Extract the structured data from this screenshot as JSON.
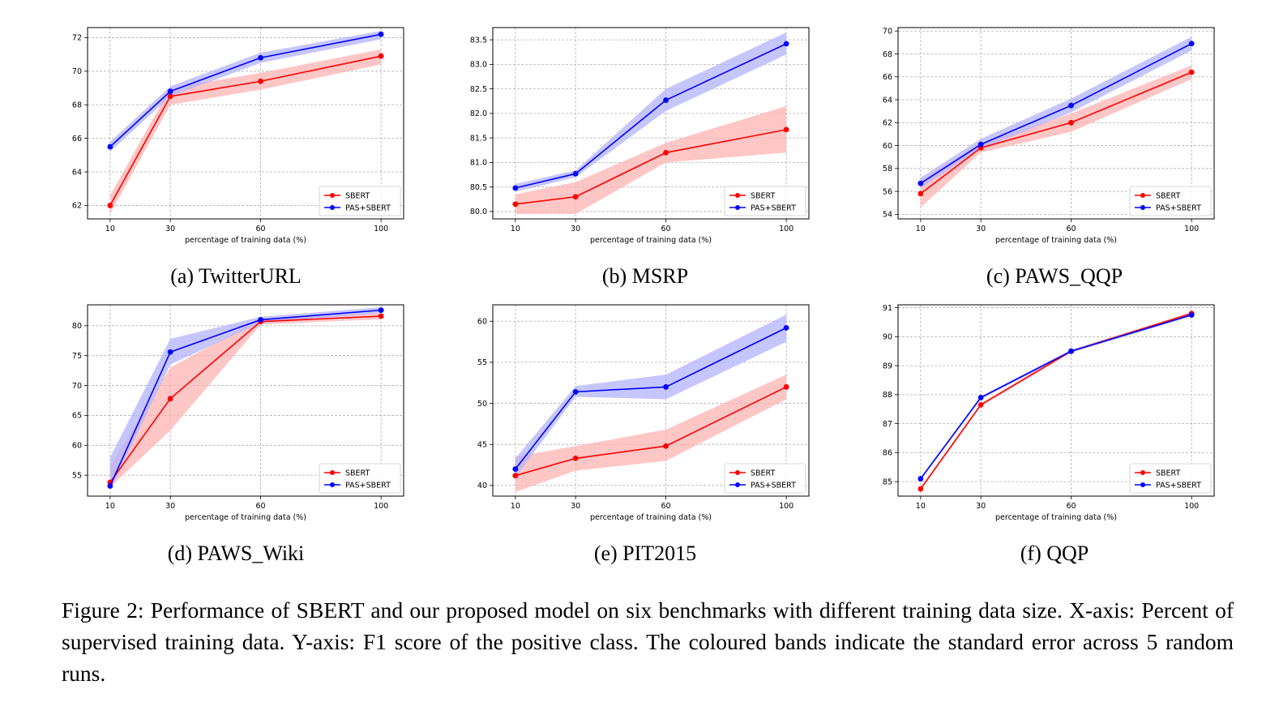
{
  "figure_caption": "Figure 2: Performance of SBERT and our proposed model on six benchmarks with different training data size. X-axis: Percent of supervised training data. Y-axis: F1 score of the positive class. The coloured bands indicate the standard error across 5 random runs.",
  "colors": {
    "sbert": "#ff0000",
    "pas": "#0000ff",
    "sbert_band": "#ffb3b3",
    "pas_band": "#b3b3ff"
  },
  "chart_data": [
    {
      "type": "line",
      "caption": "(a) TwitterURL",
      "xlabel": "percentage of training data (%)",
      "x": [
        10,
        30,
        60,
        100
      ],
      "x_ticks": [
        "10",
        "30",
        "60",
        "100"
      ],
      "y_ticks": [
        62,
        64,
        66,
        68,
        70,
        72
      ],
      "y_tick_labels": [
        "62",
        "64",
        "66",
        "68",
        "70",
        "72"
      ],
      "ylim": [
        61.2,
        72.6
      ],
      "grid": true,
      "legend": "lower-right",
      "series": [
        {
          "name": "SBERT",
          "values": [
            62.0,
            68.5,
            69.4,
            70.9
          ],
          "band": [
            [
              61.5,
              62.6
            ],
            [
              68.0,
              69.0
            ],
            [
              68.9,
              69.9
            ],
            [
              70.4,
              71.3
            ]
          ]
        },
        {
          "name": "PAS+SBERT",
          "values": [
            65.5,
            68.8,
            70.8,
            72.2
          ],
          "band": [
            [
              65.2,
              65.8
            ],
            [
              68.5,
              69.1
            ],
            [
              70.5,
              71.1
            ],
            [
              71.9,
              72.4
            ]
          ]
        }
      ]
    },
    {
      "type": "line",
      "caption": "(b) MSRP",
      "xlabel": "percentage of training data (%)",
      "x": [
        10,
        30,
        60,
        100
      ],
      "x_ticks": [
        "10",
        "30",
        "60",
        "100"
      ],
      "y_ticks": [
        80.0,
        80.5,
        81.0,
        81.5,
        82.0,
        82.5,
        83.0,
        83.5
      ],
      "y_tick_labels": [
        "80.0",
        "80.5",
        "81.0",
        "81.5",
        "82.0",
        "82.5",
        "83.0",
        "83.5"
      ],
      "ylim": [
        79.85,
        83.75
      ],
      "grid": true,
      "legend": "lower-right",
      "series": [
        {
          "name": "SBERT",
          "values": [
            80.15,
            80.3,
            81.2,
            81.67
          ],
          "band": [
            [
              79.95,
              80.35
            ],
            [
              79.95,
              80.6
            ],
            [
              81.0,
              81.4
            ],
            [
              81.2,
              82.15
            ]
          ]
        },
        {
          "name": "PAS+SBERT",
          "values": [
            80.48,
            80.77,
            82.27,
            83.42
          ],
          "band": [
            [
              80.4,
              80.56
            ],
            [
              80.7,
              80.84
            ],
            [
              82.05,
              82.5
            ],
            [
              83.2,
              83.65
            ]
          ]
        }
      ]
    },
    {
      "type": "line",
      "caption": "(c) PAWS_QQP",
      "xlabel": "percentage of training data (%)",
      "x": [
        10,
        30,
        60,
        100
      ],
      "x_ticks": [
        "10",
        "30",
        "60",
        "100"
      ],
      "y_ticks": [
        54,
        56,
        58,
        60,
        62,
        64,
        66,
        68,
        70
      ],
      "y_tick_labels": [
        "54",
        "56",
        "58",
        "60",
        "62",
        "64",
        "66",
        "68",
        "70"
      ],
      "ylim": [
        53.6,
        70.3
      ],
      "grid": true,
      "legend": "lower-right",
      "series": [
        {
          "name": "SBERT",
          "values": [
            55.8,
            59.8,
            62.0,
            66.4
          ],
          "band": [
            [
              54.6,
              57.0
            ],
            [
              59.4,
              60.2
            ],
            [
              61.2,
              62.8
            ],
            [
              65.8,
              67.0
            ]
          ]
        },
        {
          "name": "PAS+SBERT",
          "values": [
            56.7,
            60.1,
            63.5,
            68.9
          ],
          "band": [
            [
              56.3,
              57.2
            ],
            [
              59.7,
              60.6
            ],
            [
              62.9,
              64.1
            ],
            [
              68.3,
              69.5
            ]
          ]
        }
      ]
    },
    {
      "type": "line",
      "caption": "(d) PAWS_Wiki",
      "xlabel": "percentage of training data (%)",
      "x": [
        10,
        30,
        60,
        100
      ],
      "x_ticks": [
        "10",
        "30",
        "60",
        "100"
      ],
      "y_ticks": [
        55,
        60,
        65,
        70,
        75,
        80
      ],
      "y_tick_labels": [
        "55",
        "60",
        "65",
        "70",
        "75",
        "80"
      ],
      "ylim": [
        51.5,
        83.5
      ],
      "grid": true,
      "legend": "lower-right",
      "series": [
        {
          "name": "SBERT",
          "values": [
            53.8,
            67.8,
            80.7,
            81.6
          ],
          "band": [
            [
              53.0,
              56.5
            ],
            [
              62.5,
              73.0
            ],
            [
              80.2,
              81.2
            ],
            [
              81.1,
              82.1
            ]
          ]
        },
        {
          "name": "PAS+SBERT",
          "values": [
            53.2,
            75.6,
            81.0,
            82.6
          ],
          "band": [
            [
              52.5,
              58.0
            ],
            [
              73.5,
              77.8
            ],
            [
              80.5,
              81.5
            ],
            [
              82.1,
              83.1
            ]
          ]
        }
      ]
    },
    {
      "type": "line",
      "caption": "(e) PIT2015",
      "xlabel": "percentage of training data (%)",
      "x": [
        10,
        30,
        60,
        100
      ],
      "x_ticks": [
        "10",
        "30",
        "60",
        "100"
      ],
      "y_ticks": [
        40,
        45,
        50,
        55,
        60
      ],
      "y_tick_labels": [
        "40",
        "45",
        "50",
        "55",
        "60"
      ],
      "ylim": [
        38.7,
        62.0
      ],
      "grid": true,
      "legend": "lower-right",
      "series": [
        {
          "name": "SBERT",
          "values": [
            41.2,
            43.3,
            44.8,
            52.0
          ],
          "band": [
            [
              39.2,
              43.5
            ],
            [
              41.8,
              44.8
            ],
            [
              43.0,
              46.8
            ],
            [
              50.5,
              53.5
            ]
          ]
        },
        {
          "name": "PAS+SBERT",
          "values": [
            42.0,
            51.4,
            52.0,
            59.2
          ],
          "band": [
            [
              41.0,
              43.3
            ],
            [
              50.8,
              52.1
            ],
            [
              50.5,
              53.5
            ],
            [
              57.5,
              60.8
            ]
          ]
        }
      ]
    },
    {
      "type": "line",
      "caption": "(f) QQP",
      "xlabel": "percentage of training data (%)",
      "x": [
        10,
        30,
        60,
        100
      ],
      "x_ticks": [
        "10",
        "30",
        "60",
        "100"
      ],
      "y_ticks": [
        85,
        86,
        87,
        88,
        89,
        90,
        91
      ],
      "y_tick_labels": [
        "85",
        "86",
        "87",
        "88",
        "89",
        "90",
        "91"
      ],
      "ylim": [
        84.5,
        91.1
      ],
      "grid": true,
      "legend": "lower-right",
      "series": [
        {
          "name": "SBERT",
          "values": [
            84.75,
            87.65,
            89.5,
            90.8
          ],
          "band": [
            [
              84.7,
              84.8
            ],
            [
              87.6,
              87.7
            ],
            [
              89.45,
              89.55
            ],
            [
              90.75,
              90.85
            ]
          ]
        },
        {
          "name": "PAS+SBERT",
          "values": [
            85.1,
            87.9,
            89.5,
            90.75
          ],
          "band": [
            [
              85.05,
              85.15
            ],
            [
              87.85,
              87.95
            ],
            [
              89.45,
              89.55
            ],
            [
              90.7,
              90.8
            ]
          ]
        }
      ]
    }
  ]
}
